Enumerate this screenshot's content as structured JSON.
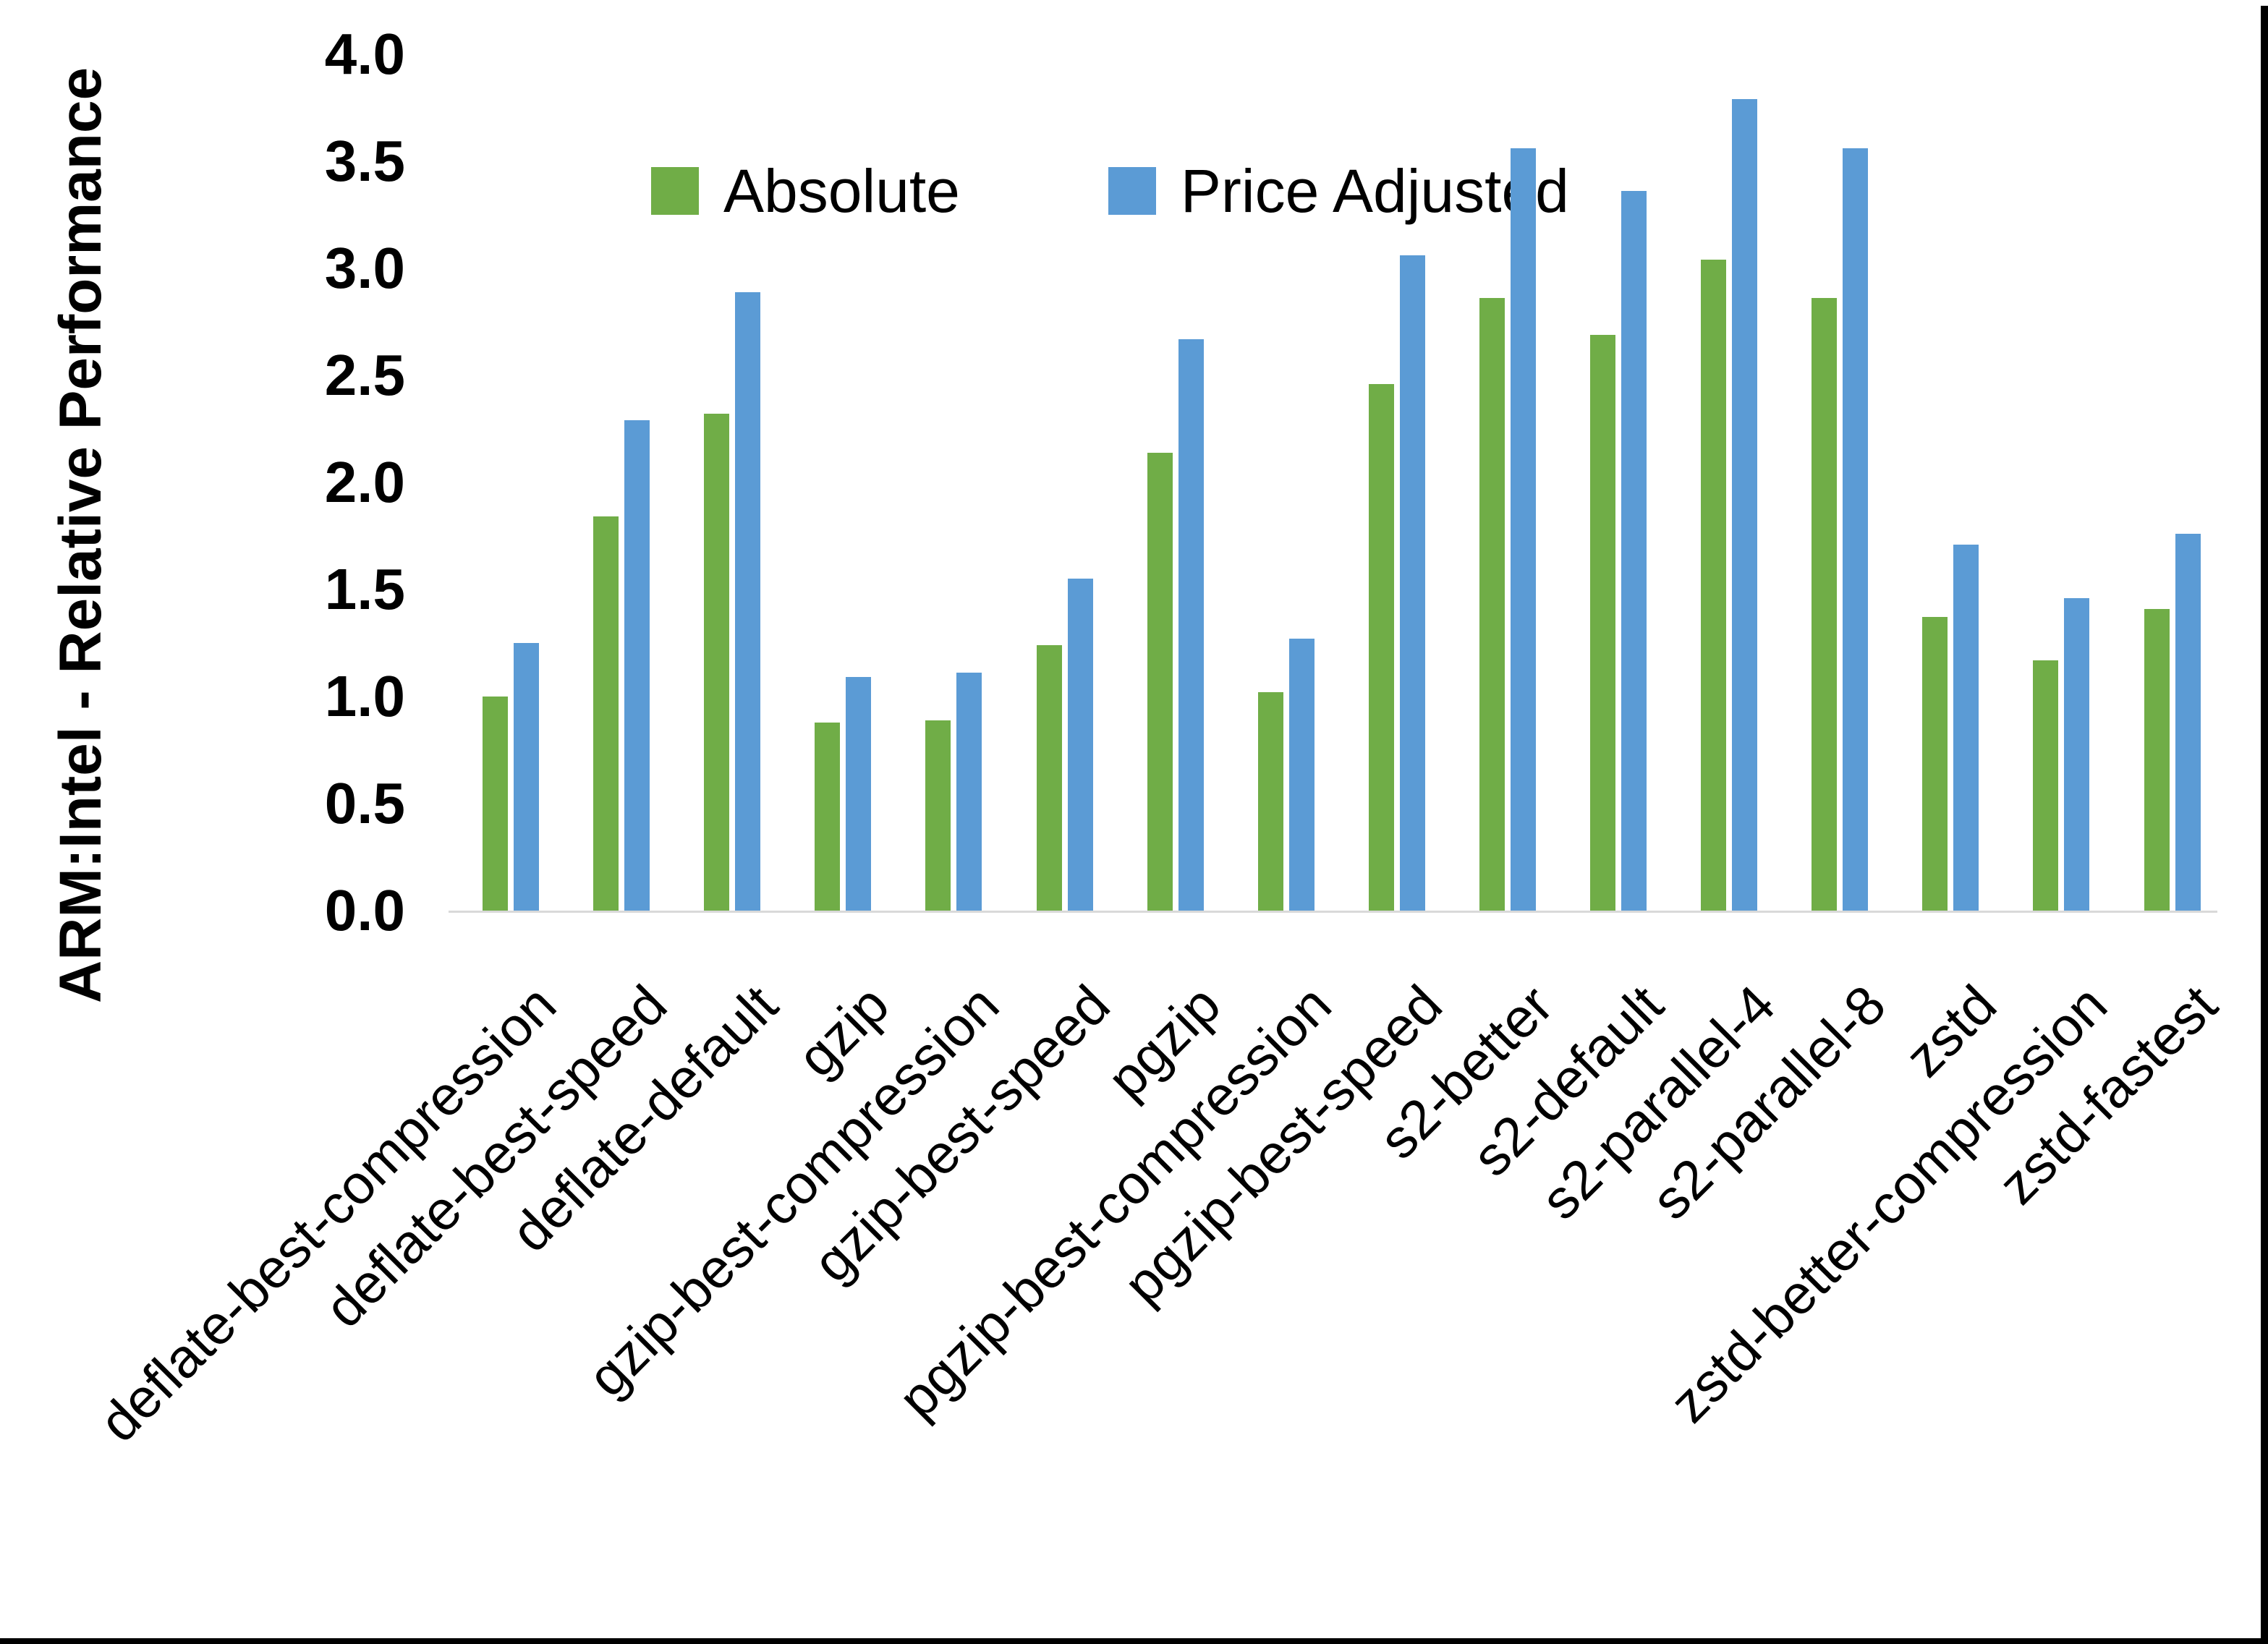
{
  "chart_data": {
    "type": "bar",
    "title": "",
    "xlabel": "",
    "ylabel": "ARM:Intel - Relative Performance",
    "ylim": [
      0.0,
      4.0
    ],
    "ytick_step": 0.5,
    "yticks": [
      "0.0",
      "0.5",
      "1.0",
      "1.5",
      "2.0",
      "2.5",
      "3.0",
      "3.5",
      "4.0"
    ],
    "grid": false,
    "legend_position": "top-center",
    "categories": [
      "deflate-best-compression",
      "deflate-best-speed",
      "deflate-default",
      "gzip",
      "gzip-best-compression",
      "gzip-best-speed",
      "pgzip",
      "pgzip-best-compression",
      "pgzip-best-speed",
      "s2-better",
      "s2-default",
      "s2-parallel-4",
      "s2-parallel-8",
      "zstd",
      "zstd-better-compression",
      "zstd-fastest"
    ],
    "series": [
      {
        "name": "Absolute",
        "color": "#70AD47",
        "values": [
          1.0,
          1.84,
          2.32,
          0.88,
          0.89,
          1.24,
          2.14,
          1.02,
          2.46,
          2.86,
          2.69,
          3.04,
          2.86,
          1.37,
          1.17,
          1.41
        ]
      },
      {
        "name": "Price Adjusted",
        "color": "#5B9BD5",
        "values": [
          1.25,
          2.29,
          2.89,
          1.09,
          1.11,
          1.55,
          2.67,
          1.27,
          3.06,
          3.56,
          3.36,
          3.79,
          3.56,
          1.71,
          1.46,
          1.76
        ]
      }
    ],
    "colors": {
      "axis_line": "#d9d9d9",
      "text": "#000000",
      "background": "#ffffff"
    }
  }
}
